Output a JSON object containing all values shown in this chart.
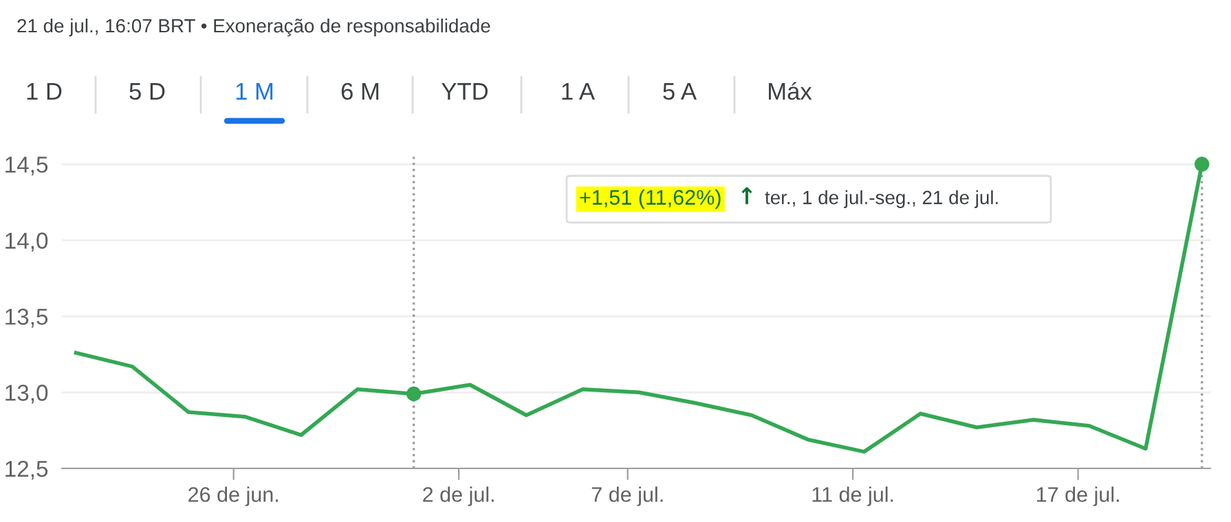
{
  "chart_data": {
    "type": "line",
    "title": "21 de jul., 16:07 BRT • Exoneração de responsabilidade",
    "annotations": [
      "1 D",
      "5 D",
      "1 M",
      "6 M",
      "YTD",
      "1 A",
      "5 A",
      "Máx",
      "+1,51 (11,62%)",
      "↑",
      "ter., 1 de jul.-seg., 21 de jul."
    ],
    "categories": [
      null,
      null,
      null,
      "26 de jun.",
      null,
      null,
      null,
      "2 de jul.",
      null,
      null,
      "7 de jul.",
      null,
      null,
      null,
      "11 de jul.",
      null,
      null,
      null,
      "17 de jul.",
      null,
      null
    ],
    "series": [
      {
        "color": "#34a853",
        "marker": "none",
        "values": [
          13.26,
          13.17,
          12.87,
          12.84,
          12.72,
          13.02,
          12.99,
          13.05,
          12.85,
          13.02,
          13.0,
          12.93,
          12.85,
          12.69,
          12.61,
          12.86,
          12.77,
          12.82,
          12.78,
          12.63,
          14.5
        ]
      },
      {
        "type": "scatter",
        "color": "#34a853",
        "marker": "circle",
        "line_style": "dotted",
        "values": [
          null,
          null,
          null,
          null,
          null,
          null,
          12.99,
          null,
          null,
          null,
          null,
          null,
          null,
          null,
          null,
          null,
          null,
          null,
          null,
          null,
          14.5
        ]
      }
    ],
    "ylim": [
      12.5,
      14.55
    ],
    "yticks": [
      {
        "value": 12.5,
        "label": "12,5"
      },
      {
        "value": 13.0,
        "label": "13,0"
      },
      {
        "value": 13.5,
        "label": "13,5"
      },
      {
        "value": 14.0,
        "label": "14,0"
      },
      {
        "value": 14.5,
        "label": "14,5"
      }
    ],
    "grid": "y",
    "legend": false
  }
}
